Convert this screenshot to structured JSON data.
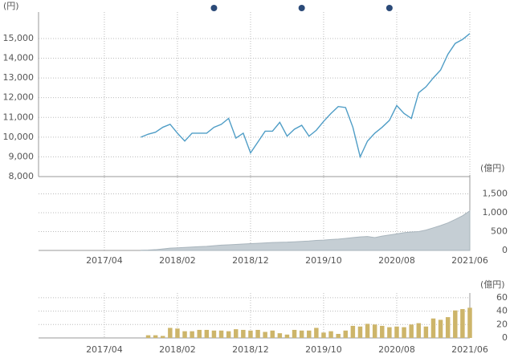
{
  "chart_data": [
    {
      "type": "line",
      "y_label": "(円)",
      "color": "#4f9dc6",
      "ylim": [
        8000,
        16340
      ],
      "yticks": [
        {
          "value": 8000,
          "label": "8,000"
        },
        {
          "value": 9000,
          "label": "9,000"
        },
        {
          "value": 10000,
          "label": "10,000"
        },
        {
          "value": 11000,
          "label": "11,000"
        },
        {
          "value": 12000,
          "label": "12,000"
        },
        {
          "value": 13000,
          "label": "13,000"
        },
        {
          "value": 14000,
          "label": "14,000"
        },
        {
          "value": 15000,
          "label": "15,000"
        }
      ],
      "xlim": [
        "2016/07",
        "2021/06"
      ],
      "events": [
        "2018/07",
        "2019/07",
        "2020/07"
      ],
      "event_color": "#2b4a78",
      "x": [
        "2017/09",
        "2017/10",
        "2017/11",
        "2017/12",
        "2018/01",
        "2018/02",
        "2018/03",
        "2018/04",
        "2018/05",
        "2018/06",
        "2018/07",
        "2018/08",
        "2018/09",
        "2018/10",
        "2018/11",
        "2018/12",
        "2019/01",
        "2019/02",
        "2019/03",
        "2019/04",
        "2019/05",
        "2019/06",
        "2019/07",
        "2019/08",
        "2019/09",
        "2019/10",
        "2019/11",
        "2019/12",
        "2020/01",
        "2020/02",
        "2020/03",
        "2020/04",
        "2020/05",
        "2020/06",
        "2020/07",
        "2020/08",
        "2020/09",
        "2020/10",
        "2020/11",
        "2020/12",
        "2021/01",
        "2021/02",
        "2021/03",
        "2021/04",
        "2021/05",
        "2021/06"
      ],
      "values": [
        10000,
        10150,
        10250,
        10500,
        10650,
        10200,
        9800,
        10200,
        10200,
        10200,
        10500,
        10650,
        10950,
        9950,
        10200,
        9200,
        9750,
        10300,
        10300,
        10750,
        10050,
        10400,
        10600,
        10050,
        10350,
        10800,
        11200,
        11550,
        11500,
        10500,
        9000,
        9800,
        10200,
        10500,
        10850,
        11600,
        11200,
        10950,
        12250,
        12550,
        13000,
        13400,
        14200,
        14750,
        14950,
        15250
      ]
    },
    {
      "type": "area",
      "y_label": "(億円)",
      "color": "#c5ced4",
      "ylim": [
        0,
        2000
      ],
      "yticks": [
        0,
        500,
        {
          "value": 1000,
          "label": "1,000"
        },
        {
          "value": 1500,
          "label": "1,500"
        }
      ],
      "xlim": [
        "2016/07",
        "2021/06"
      ],
      "xticks": [
        "2017/04",
        "2018/02",
        "2018/12",
        "2019/10",
        "2020/08",
        "2021/06"
      ],
      "x": [
        "2017/09",
        "2017/10",
        "2017/11",
        "2017/12",
        "2018/01",
        "2018/02",
        "2018/03",
        "2018/04",
        "2018/05",
        "2018/06",
        "2018/07",
        "2018/08",
        "2018/09",
        "2018/10",
        "2018/11",
        "2018/12",
        "2019/01",
        "2019/02",
        "2019/03",
        "2019/04",
        "2019/05",
        "2019/06",
        "2019/07",
        "2019/08",
        "2019/09",
        "2019/10",
        "2019/11",
        "2019/12",
        "2020/01",
        "2020/02",
        "2020/03",
        "2020/04",
        "2020/05",
        "2020/06",
        "2020/07",
        "2020/08",
        "2020/09",
        "2020/10",
        "2020/11",
        "2020/12",
        "2021/01",
        "2021/02",
        "2021/03",
        "2021/04",
        "2021/05",
        "2021/06"
      ],
      "values": [
        5,
        10,
        20,
        40,
        60,
        70,
        80,
        90,
        100,
        110,
        125,
        140,
        150,
        160,
        170,
        180,
        190,
        200,
        210,
        215,
        220,
        230,
        240,
        250,
        265,
        275,
        290,
        300,
        320,
        340,
        360,
        370,
        340,
        380,
        410,
        440,
        470,
        490,
        500,
        540,
        600,
        660,
        730,
        820,
        920,
        1050
      ]
    },
    {
      "type": "bar",
      "y_label": "(億円)",
      "color": "#cdb56a",
      "ylim": [
        0,
        67
      ],
      "yticks": [
        0,
        20,
        40,
        60
      ],
      "xlim": [
        "2016/07",
        "2021/06"
      ],
      "xticks": [
        "2017/04",
        "2018/02",
        "2018/12",
        "2019/10",
        "2020/08",
        "2021/06"
      ],
      "x": [
        "2017/10",
        "2017/11",
        "2017/12",
        "2018/01",
        "2018/02",
        "2018/03",
        "2018/04",
        "2018/05",
        "2018/06",
        "2018/07",
        "2018/08",
        "2018/09",
        "2018/10",
        "2018/11",
        "2018/12",
        "2019/01",
        "2019/02",
        "2019/03",
        "2019/04",
        "2019/05",
        "2019/06",
        "2019/07",
        "2019/08",
        "2019/09",
        "2019/10",
        "2019/11",
        "2019/12",
        "2020/01",
        "2020/02",
        "2020/03",
        "2020/04",
        "2020/05",
        "2020/06",
        "2020/07",
        "2020/08",
        "2020/09",
        "2020/10",
        "2020/11",
        "2020/12",
        "2021/01",
        "2021/02",
        "2021/03",
        "2021/04",
        "2021/05",
        "2021/06"
      ],
      "values": [
        4,
        4,
        3,
        15,
        14,
        10,
        10,
        12,
        12,
        11,
        11,
        10,
        13,
        12,
        11,
        12,
        9,
        11,
        7,
        5,
        12,
        11,
        11,
        15,
        8,
        10,
        6,
        11,
        18,
        17,
        21,
        20,
        18,
        16,
        17,
        16,
        20,
        22,
        17,
        29,
        27,
        31,
        41,
        43,
        45
      ]
    }
  ]
}
